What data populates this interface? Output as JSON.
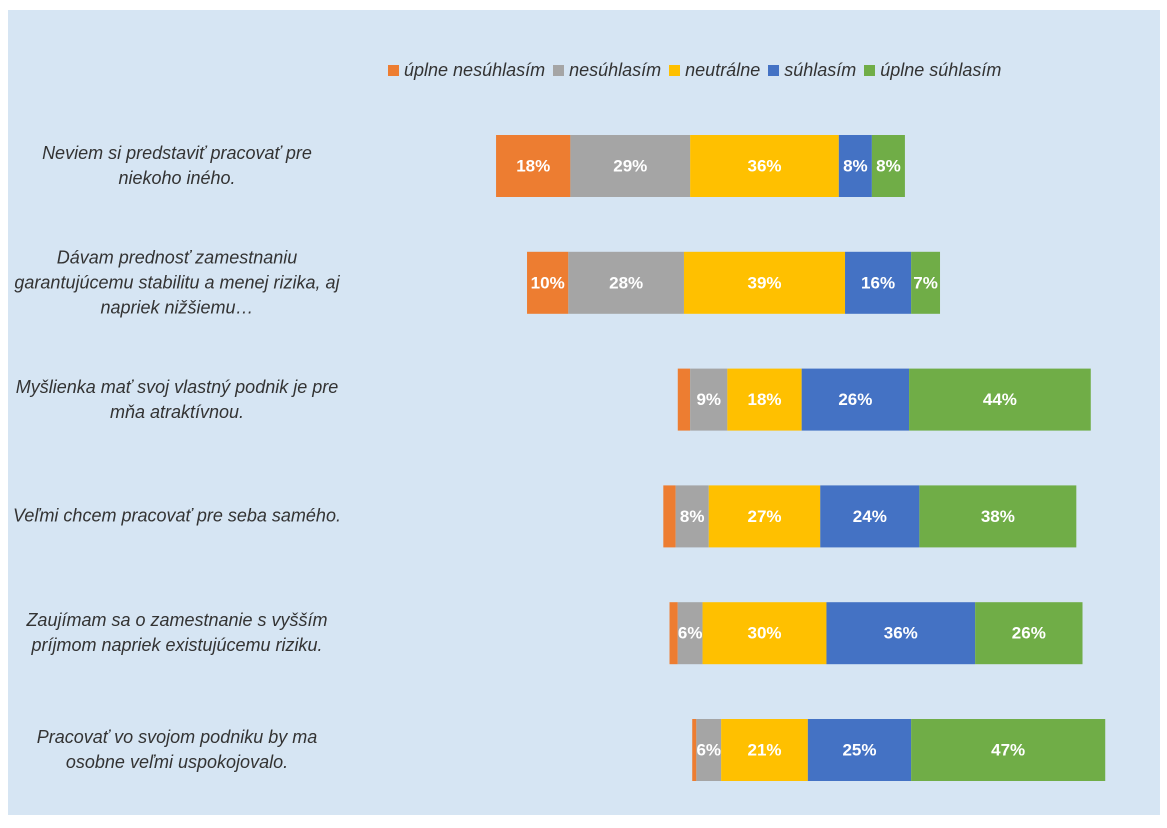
{
  "chart_data": {
    "type": "diverging-bar",
    "categories": [
      "Neviem si predstaviť pracovať pre niekoho iného.",
      "Dávam prednosť zamestnaniu garantujúcemu stabilitu a menej rizika, aj napriek nižšiemu…",
      "Myšlienka mať svoj vlastný podnik je pre mňa atraktívnou.",
      "Veľmi chcem pracovať pre seba samého.",
      "Zaujímam sa o zamestnanie s vyšším príjmom napriek existujúcemu riziku.",
      "Pracovať vo svojom podniku by ma osobne veľmi uspokojovalo."
    ],
    "series": [
      {
        "name": "úplne nesúhlasím",
        "color": "#ED7D31",
        "values": [
          18,
          10,
          3,
          3,
          2,
          1
        ],
        "value_labels": [
          "18%",
          "10%",
          null,
          null,
          null,
          null
        ]
      },
      {
        "name": "nesúhlasím",
        "color": "#A5A5A5",
        "values": [
          29,
          28,
          9,
          8,
          6,
          6
        ],
        "value_labels": [
          "29%",
          "28%",
          "9%",
          "8%",
          "6%",
          "6%"
        ]
      },
      {
        "name": "neutrálne",
        "color": "#FFC000",
        "values": [
          36,
          39,
          18,
          27,
          30,
          21
        ],
        "value_labels": [
          "36%",
          "39%",
          "18%",
          "27%",
          "30%",
          "21%"
        ]
      },
      {
        "name": "súhlasím",
        "color": "#4472C4",
        "values": [
          8,
          16,
          26,
          24,
          36,
          25
        ],
        "value_labels": [
          "8%",
          "16%",
          "26%",
          "24%",
          "36%",
          "25%"
        ]
      },
      {
        "name": "úplne súhlasím",
        "color": "#70AD47",
        "values": [
          8,
          7,
          44,
          38,
          26,
          47
        ],
        "value_labels": [
          "8%",
          "7%",
          "44%",
          "38%",
          "26%",
          "47%"
        ]
      }
    ],
    "center_series": 2,
    "legend": "top"
  }
}
